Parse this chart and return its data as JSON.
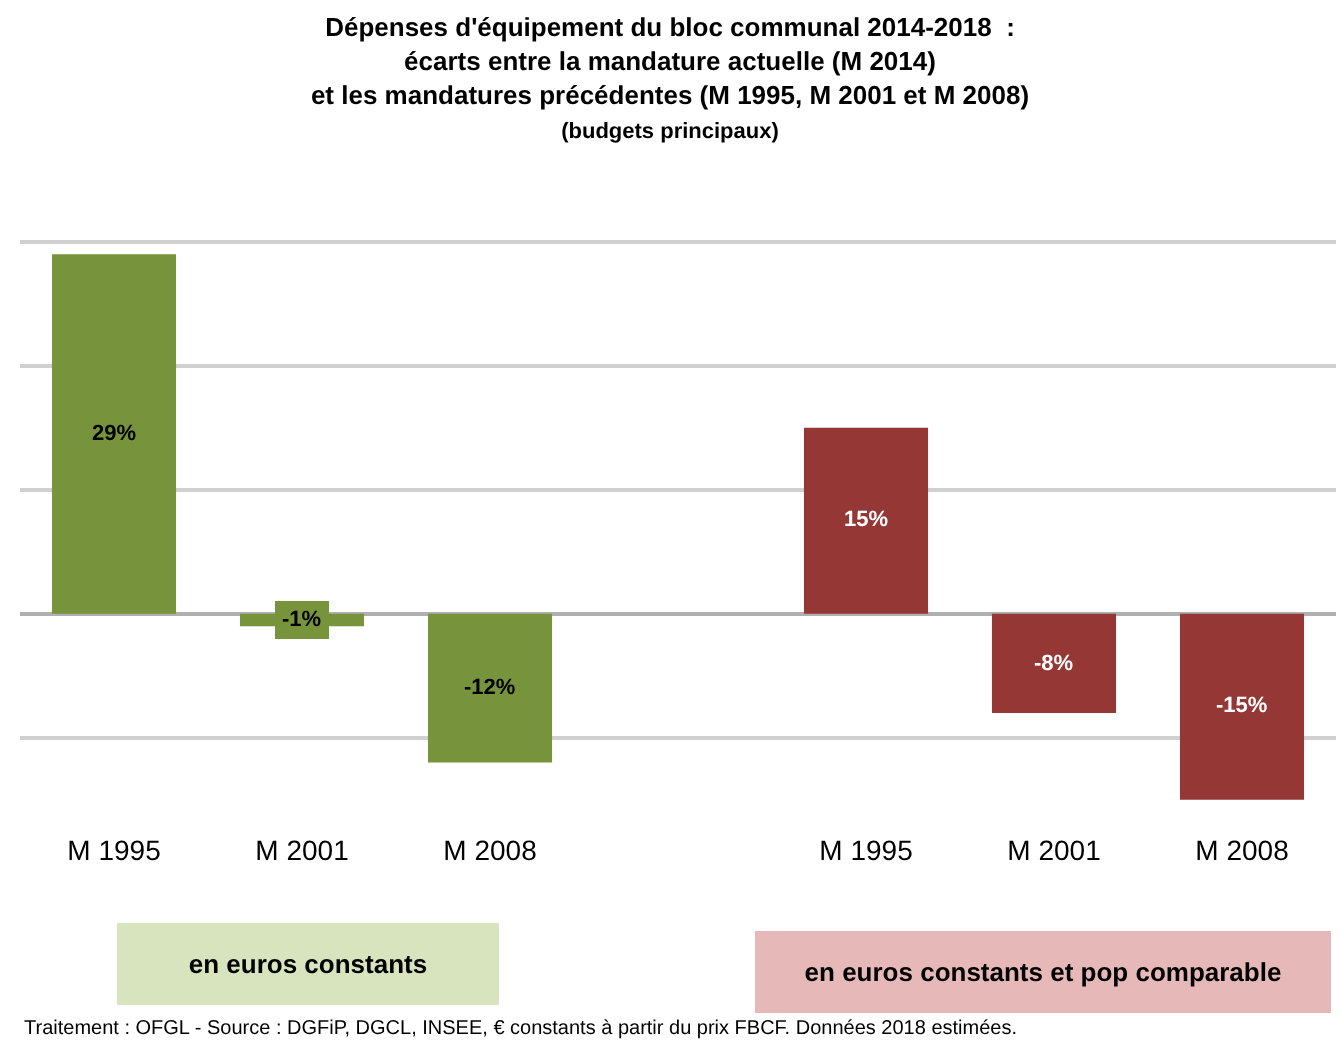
{
  "chart_data": {
    "type": "bar",
    "title": "Dépenses d'équipement du bloc communal 2014-2018  :\nécarts entre la mandature actuelle (M 2014)\net les mandatures précédentes (M 1995, M 2001 et M 2008)",
    "subtitle": "(budgets principaux)",
    "categories": [
      "M 1995",
      "M 2001",
      "M 2008",
      null,
      "M 1995",
      "M 2001",
      "M 2008"
    ],
    "values": [
      29,
      -1,
      -12,
      null,
      15,
      -8,
      -15
    ],
    "colors": [
      "#77933c",
      "#77933c",
      "#77933c",
      "#77933c",
      "#953735",
      "#953735",
      "#953735"
    ],
    "value_labels": [
      "29%",
      "-1%",
      "-12%",
      null,
      "15%",
      "-8%",
      "-15%"
    ],
    "grid": "y",
    "tick_labels": "x",
    "annotations": [
      "en euros constants",
      "en euros constants et pop comparable",
      "Traitement : OFGL - Source : DGFiP, DGCL, INSEE, € constants à partir du prix FBCF. Données 2018 estimées."
    ]
  }
}
